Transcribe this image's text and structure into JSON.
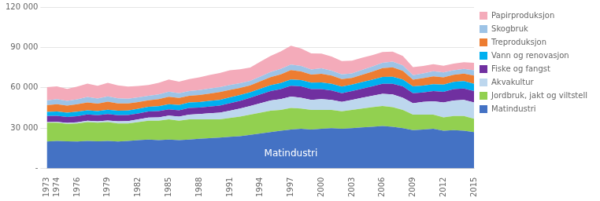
{
  "chart_data": {
    "type": "area",
    "stacked": true,
    "x": [
      1973,
      1974,
      1975,
      1976,
      1977,
      1978,
      1979,
      1980,
      1981,
      1982,
      1983,
      1984,
      1985,
      1986,
      1987,
      1988,
      1989,
      1990,
      1991,
      1992,
      1993,
      1994,
      1995,
      1996,
      1997,
      1998,
      1999,
      2000,
      2001,
      2002,
      2003,
      2004,
      2005,
      2006,
      2007,
      2008,
      2009,
      2010,
      2011,
      2012,
      2013,
      2014,
      2015
    ],
    "series": [
      {
        "name": "Matindustri",
        "color": "#4472C4",
        "values": [
          20000,
          20500,
          20200,
          20000,
          20500,
          20200,
          20500,
          20000,
          20500,
          21000,
          21500,
          21000,
          21500,
          21000,
          21500,
          22000,
          22500,
          23000,
          23500,
          24000,
          25000,
          26000,
          27000,
          28000,
          29000,
          29500,
          29000,
          29500,
          30000,
          29500,
          30000,
          30500,
          31000,
          31500,
          31000,
          30000,
          28500,
          29000,
          29500,
          28000,
          28500,
          28000,
          27000
        ]
      },
      {
        "name": "Jordbruk, jakt og viltstell",
        "color": "#92D050",
        "values": [
          14000,
          13500,
          13000,
          13500,
          14000,
          13800,
          14000,
          13500,
          13000,
          13500,
          14000,
          14500,
          15000,
          14500,
          15000,
          14500,
          14000,
          13500,
          14000,
          14500,
          15000,
          15500,
          16000,
          15500,
          16000,
          15000,
          14500,
          14000,
          13500,
          13000,
          13500,
          14000,
          14500,
          15000,
          14500,
          13500,
          11500,
          11000,
          10500,
          10000,
          10500,
          11000,
          10000
        ]
      },
      {
        "name": "Akvakultur",
        "color": "#BDD7EE",
        "values": [
          500,
          600,
          700,
          900,
          1000,
          1100,
          1200,
          1500,
          1700,
          2000,
          2300,
          2500,
          2800,
          3000,
          3500,
          4000,
          4500,
          5000,
          5500,
          6000,
          6500,
          7000,
          7500,
          8000,
          8500,
          8000,
          7500,
          8000,
          7500,
          7000,
          7500,
          8000,
          8500,
          9000,
          9500,
          9000,
          8500,
          9500,
          10000,
          11000,
          11500,
          12000,
          12000
        ]
      },
      {
        "name": "Fiske og fangst",
        "color": "#7030A0",
        "values": [
          4500,
          4600,
          4400,
          4500,
          4600,
          4500,
          4700,
          4600,
          4500,
          4400,
          4500,
          4600,
          4700,
          4800,
          5000,
          4800,
          5000,
          5200,
          5500,
          5800,
          6000,
          6500,
          7000,
          7500,
          8000,
          8500,
          8000,
          7500,
          7000,
          6500,
          6500,
          6800,
          7000,
          7500,
          8000,
          8500,
          7500,
          7000,
          7500,
          8000,
          8500,
          8500,
          8500
        ]
      },
      {
        "name": "Vann og renovasjon",
        "color": "#00B0F0",
        "values": [
          3000,
          3100,
          3200,
          3300,
          3200,
          3100,
          3200,
          3300,
          3400,
          3500,
          3600,
          3700,
          3800,
          3900,
          4000,
          4100,
          4200,
          4300,
          4400,
          4300,
          4200,
          4300,
          4400,
          4500,
          4600,
          4700,
          4800,
          4900,
          5000,
          4900,
          4800,
          4900,
          5000,
          5100,
          5200,
          5100,
          5000,
          5100,
          5200,
          5300,
          5400,
          5500,
          5500
        ]
      },
      {
        "name": "Treproduksjon",
        "color": "#ED7D31",
        "values": [
          5000,
          5500,
          5200,
          5500,
          5800,
          5500,
          6000,
          5500,
          5200,
          5000,
          4800,
          5200,
          5500,
          5200,
          5000,
          5200,
          5500,
          5800,
          5500,
          5200,
          5000,
          5500,
          6000,
          6500,
          7000,
          6500,
          6000,
          6500,
          6000,
          5500,
          5000,
          5500,
          6000,
          6500,
          7000,
          6500,
          5000,
          5500,
          5800,
          5500,
          5200,
          5500,
          6000
        ]
      },
      {
        "name": "Skogbruk",
        "color": "#9DC3E6",
        "values": [
          3500,
          3700,
          3500,
          3700,
          4000,
          3800,
          4000,
          3800,
          3600,
          3500,
          3400,
          3600,
          3800,
          3600,
          3500,
          3600,
          3800,
          3700,
          3600,
          3500,
          3400,
          3600,
          3800,
          4000,
          4200,
          4000,
          3800,
          4000,
          3700,
          3500,
          3400,
          3600,
          3800,
          4000,
          4200,
          4000,
          3400,
          3600,
          3800,
          3600,
          3400,
          3500,
          4000
        ]
      },
      {
        "name": "Papirproduksjon",
        "color": "#F4ABBA",
        "values": [
          10000,
          9500,
          9000,
          9500,
          10000,
          9500,
          10000,
          9500,
          9000,
          8500,
          8000,
          8500,
          9000,
          8500,
          9000,
          9500,
          10000,
          10500,
          11000,
          10500,
          10000,
          11000,
          12000,
          13000,
          14000,
          13000,
          12000,
          11000,
          10500,
          10000,
          9500,
          9000,
          8500,
          8000,
          7500,
          7000,
          6000,
          5500,
          5200,
          5000,
          5000,
          5000,
          5500
        ]
      }
    ],
    "xlim": [
      1973,
      2015
    ],
    "xticks": [
      1973,
      1974,
      1976,
      1979,
      1982,
      1985,
      1988,
      1991,
      1994,
      1997,
      2000,
      2003,
      2006,
      2009,
      2012,
      2015
    ],
    "ylim": [
      0,
      120000
    ],
    "yticks": [
      {
        "value": 0,
        "label": "-"
      },
      {
        "value": 30000,
        "label": "30 000"
      },
      {
        "value": 60000,
        "label": "60 000"
      },
      {
        "value": 90000,
        "label": "90 000"
      },
      {
        "value": 120000,
        "label": "120 000"
      }
    ],
    "grid": true,
    "legend": "right",
    "annotations": [
      {
        "text": "Matindustri",
        "x": 1997,
        "y": 11000,
        "color": "#FFFFFF"
      }
    ]
  }
}
